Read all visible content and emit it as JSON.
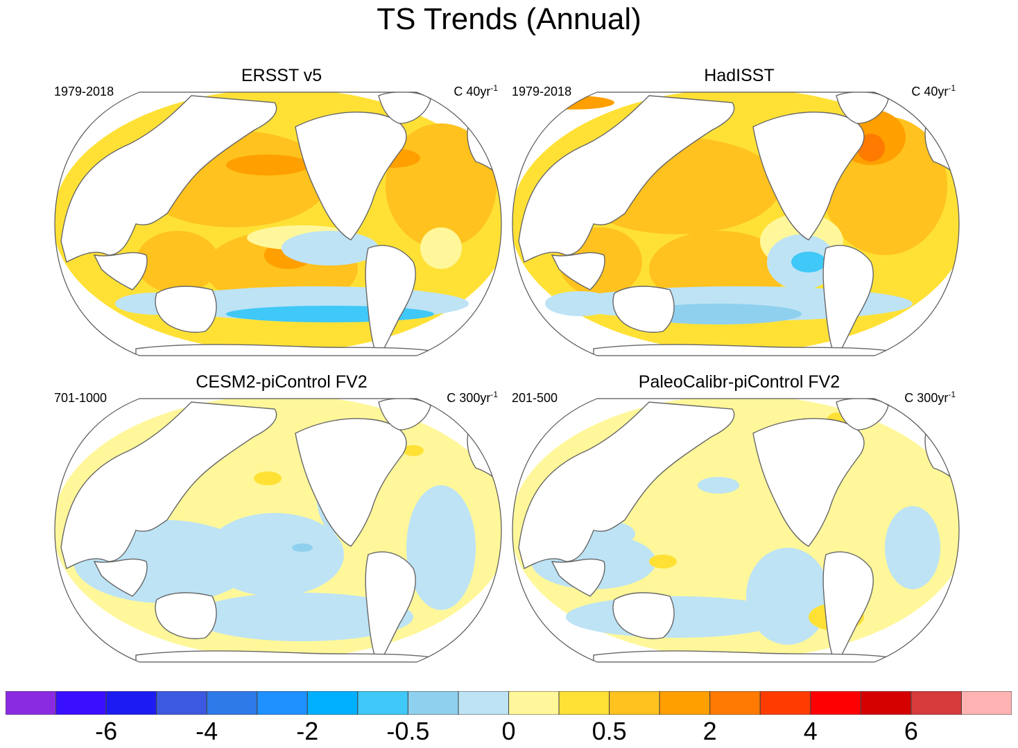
{
  "title": "TS Trends (Annual)",
  "panels": [
    {
      "name": "ERSST v5",
      "period": "1979-2018",
      "units_base": "C 40yr",
      "units_exp": "-1"
    },
    {
      "name": "HadISST",
      "period": "1979-2018",
      "units_base": "C 40yr",
      "units_exp": "-1"
    },
    {
      "name": "CESM2-piControl FV2",
      "period": "701-1000",
      "units_base": "C 300yr",
      "units_exp": "-1"
    },
    {
      "name": "PaleoCalibr-piControl FV2",
      "period": "201-500",
      "units_base": "C 300yr",
      "units_exp": "-1"
    }
  ],
  "colorbar": {
    "colors": [
      "#8a2be2",
      "#3a0fff",
      "#1c1cf2",
      "#3c5ae0",
      "#2e7ae8",
      "#1e90ff",
      "#00b0ff",
      "#3fc8f8",
      "#8fd0ee",
      "#bde3f5",
      "#fff79a",
      "#ffe136",
      "#ffc21e",
      "#ff9f00",
      "#ff7a00",
      "#ff3c00",
      "#ff0000",
      "#d50000",
      "#d63a3a",
      "#ffb3b3"
    ],
    "tick_labels": [
      "-6",
      "-4",
      "-2",
      "-0.5",
      "0",
      "0.5",
      "2",
      "4",
      "6"
    ],
    "tick_boundaries": [
      2,
      4,
      6,
      8,
      10,
      12,
      14,
      16,
      18
    ]
  },
  "chart_data": {
    "type": "heatmap",
    "title": "TS Trends (Annual)",
    "variable": "TS",
    "colorbar_levels": [
      "-6",
      "-4",
      "-2",
      "-0.5",
      "0",
      "0.5",
      "2",
      "4",
      "6"
    ],
    "panels": [
      "ERSST v5",
      "HadISST",
      "CESM2-piControl FV2",
      "PaleoCalibr-piControl FV2"
    ]
  }
}
